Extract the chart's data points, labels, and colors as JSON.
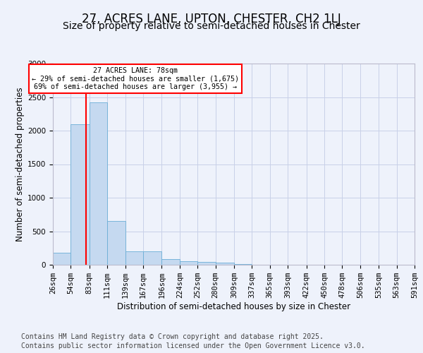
{
  "title1": "27, ACRES LANE, UPTON, CHESTER, CH2 1LJ",
  "title2": "Size of property relative to semi-detached houses in Chester",
  "xlabel": "Distribution of semi-detached houses by size in Chester",
  "ylabel": "Number of semi-detached properties",
  "bar_color": "#c5d9f0",
  "bar_edge_color": "#6aaed6",
  "background_color": "#eef2fb",
  "grid_color": "#c8d0e8",
  "red_line_x": 78,
  "annotation_title": "27 ACRES LANE: 78sqm",
  "annotation_line1": "← 29% of semi-detached houses are smaller (1,675)",
  "annotation_line2": "69% of semi-detached houses are larger (3,955) →",
  "footer1": "Contains HM Land Registry data © Crown copyright and database right 2025.",
  "footer2": "Contains public sector information licensed under the Open Government Licence v3.0.",
  "bins": [
    26,
    54,
    83,
    111,
    139,
    167,
    196,
    224,
    252,
    280,
    309,
    337,
    365,
    393,
    422,
    450,
    478,
    506,
    535,
    563,
    591
  ],
  "counts": [
    175,
    2090,
    2420,
    650,
    200,
    200,
    80,
    50,
    40,
    30,
    10,
    5,
    3,
    2,
    1,
    1,
    0,
    0,
    0,
    0
  ],
  "ylim": [
    0,
    3000
  ],
  "yticks": [
    0,
    500,
    1000,
    1500,
    2000,
    2500,
    3000
  ],
  "title1_fontsize": 12,
  "title2_fontsize": 10,
  "axis_fontsize": 8.5,
  "tick_fontsize": 7.5,
  "footer_fontsize": 7
}
